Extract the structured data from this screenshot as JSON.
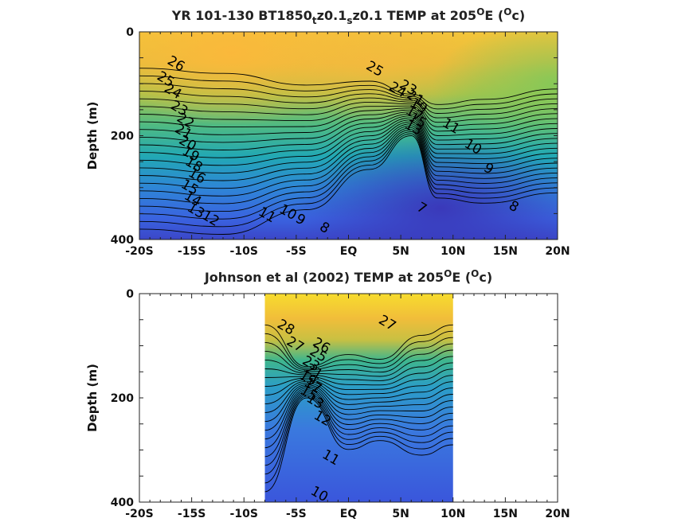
{
  "chart_data": [
    {
      "type": "heatmap",
      "title_main": "YR 101-130 BT1850",
      "title_sub1": "t",
      "title_mid1": "z0.1",
      "title_sub2": "s",
      "title_mid2": "z0.1 TEMP at 205",
      "title_sup1": "O",
      "title_mid3": "E (",
      "title_sup2": "O",
      "title_end": "c)",
      "ylabel": "Depth (m)",
      "xlim": [
        -20,
        20
      ],
      "ylim": [
        0,
        400
      ],
      "y_reversed": true,
      "xticks": [
        {
          "value": -20,
          "label": "-20S"
        },
        {
          "value": -15,
          "label": "-15S"
        },
        {
          "value": -10,
          "label": "-10S"
        },
        {
          "value": -5,
          "label": "-5S"
        },
        {
          "value": 0,
          "label": "EQ"
        },
        {
          "value": 5,
          "label": "5N"
        },
        {
          "value": 10,
          "label": "10N"
        },
        {
          "value": 15,
          "label": "15N"
        },
        {
          "value": 20,
          "label": "20N"
        }
      ],
      "yticks": [
        {
          "value": 0,
          "label": "0"
        },
        {
          "value": 200,
          "label": "200"
        },
        {
          "value": 400,
          "label": "400"
        }
      ],
      "data_xrange": [
        -20,
        20
      ],
      "colormap": "parula",
      "contour_labels": [
        {
          "text": "26",
          "x": -16.5,
          "y": 62
        },
        {
          "text": "25",
          "x": -17.5,
          "y": 92
        },
        {
          "text": "24",
          "x": -16.8,
          "y": 115
        },
        {
          "text": "23",
          "x": -16.2,
          "y": 148
        },
        {
          "text": "22",
          "x": -15.6,
          "y": 172
        },
        {
          "text": "21",
          "x": -15.8,
          "y": 193
        },
        {
          "text": "20",
          "x": -15.4,
          "y": 215
        },
        {
          "text": "19",
          "x": -15.1,
          "y": 236
        },
        {
          "text": "18",
          "x": -14.8,
          "y": 256
        },
        {
          "text": "16",
          "x": -14.5,
          "y": 278
        },
        {
          "text": "15",
          "x": -15.2,
          "y": 300
        },
        {
          "text": "14",
          "x": -14.9,
          "y": 322
        },
        {
          "text": "13",
          "x": -14.6,
          "y": 345
        },
        {
          "text": "12",
          "x": -13.2,
          "y": 360
        },
        {
          "text": "11",
          "x": -7.8,
          "y": 353
        },
        {
          "text": "10",
          "x": -5.8,
          "y": 348
        },
        {
          "text": "9",
          "x": -4.6,
          "y": 362
        },
        {
          "text": "8",
          "x": -2.3,
          "y": 378
        },
        {
          "text": "25",
          "x": 2.5,
          "y": 72
        },
        {
          "text": "24",
          "x": 4.7,
          "y": 112
        },
        {
          "text": "23",
          "x": 5.7,
          "y": 108
        },
        {
          "text": "11",
          "x": 9.8,
          "y": 182
        },
        {
          "text": "10",
          "x": 11.9,
          "y": 222
        },
        {
          "text": "9",
          "x": 13.4,
          "y": 264
        },
        {
          "text": "8",
          "x": 15.8,
          "y": 337
        },
        {
          "text": "7",
          "x": 7.0,
          "y": 340
        },
        {
          "text": "21",
          "x": 6.4,
          "y": 128
        },
        {
          "text": "19",
          "x": 6.7,
          "y": 143
        },
        {
          "text": "17",
          "x": 6.3,
          "y": 158
        },
        {
          "text": "15",
          "x": 6.6,
          "y": 171
        },
        {
          "text": "13",
          "x": 6.2,
          "y": 185
        }
      ]
    },
    {
      "type": "heatmap",
      "title_main": "Johnson et al (2002) TEMP at 205",
      "title_sup1": "O",
      "title_mid3": "E (",
      "title_sup2": "O",
      "title_end": "c)",
      "ylabel": "Depth (m)",
      "xlim": [
        -20,
        20
      ],
      "ylim": [
        0,
        400
      ],
      "y_reversed": true,
      "xticks": [
        {
          "value": -20,
          "label": "-20S"
        },
        {
          "value": -15,
          "label": "-15S"
        },
        {
          "value": -10,
          "label": "-10S"
        },
        {
          "value": -5,
          "label": "-5S"
        },
        {
          "value": 0,
          "label": "EQ"
        },
        {
          "value": 5,
          "label": "5N"
        },
        {
          "value": 10,
          "label": "10N"
        },
        {
          "value": 15,
          "label": "15N"
        },
        {
          "value": 20,
          "label": "20N"
        }
      ],
      "yticks": [
        {
          "value": 0,
          "label": "0"
        },
        {
          "value": 200,
          "label": "200"
        },
        {
          "value": 400,
          "label": "400"
        }
      ],
      "data_xrange": [
        -8,
        10
      ],
      "colormap": "parula",
      "contour_labels": [
        {
          "text": "28",
          "x": -6.0,
          "y": 65
        },
        {
          "text": "27",
          "x": 3.7,
          "y": 57
        },
        {
          "text": "27",
          "x": -5.1,
          "y": 98
        },
        {
          "text": "26",
          "x": -2.6,
          "y": 100
        },
        {
          "text": "25",
          "x": -2.9,
          "y": 117
        },
        {
          "text": "23",
          "x": -3.6,
          "y": 135
        },
        {
          "text": "21",
          "x": -3.3,
          "y": 150
        },
        {
          "text": "19",
          "x": -3.9,
          "y": 163
        },
        {
          "text": "17",
          "x": -3.4,
          "y": 177
        },
        {
          "text": "15",
          "x": -3.8,
          "y": 192
        },
        {
          "text": "13",
          "x": -3.2,
          "y": 207
        },
        {
          "text": "12",
          "x": -2.5,
          "y": 240
        },
        {
          "text": "11",
          "x": -1.7,
          "y": 315
        },
        {
          "text": "10",
          "x": -2.8,
          "y": 385
        }
      ]
    }
  ]
}
